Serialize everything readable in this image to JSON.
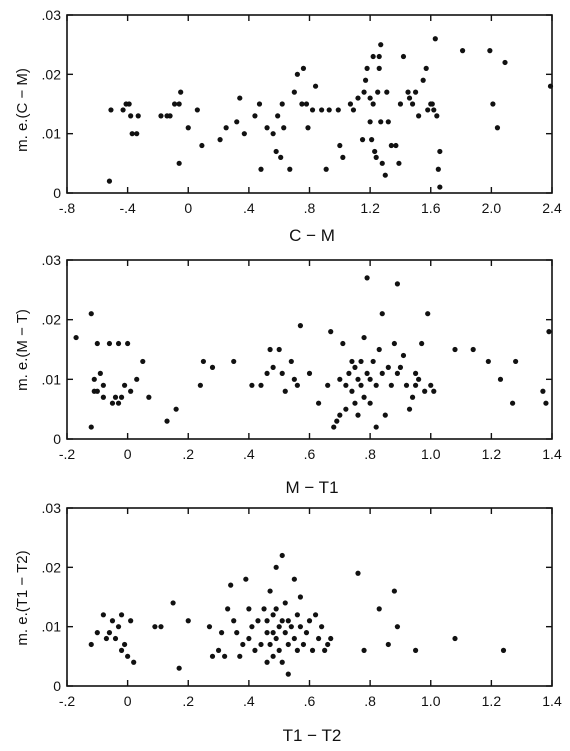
{
  "chart_data": [
    {
      "type": "scatter",
      "xlabel": "C − M",
      "ylabel": "m. e.(C − M)",
      "xlim": [
        -0.8,
        2.4
      ],
      "ylim": [
        0,
        0.03
      ],
      "xticks": [
        -0.8,
        -0.4,
        0,
        0.4,
        0.8,
        1.2,
        1.6,
        2.0,
        2.4
      ],
      "xtick_labels": [
        "-.8",
        "-.4",
        "0",
        ".4",
        ".8",
        "1.2",
        "1.6",
        "2.0",
        "2.4"
      ],
      "yticks": [
        0,
        0.01,
        0.02,
        0.03
      ],
      "ytick_labels": [
        "0",
        ".01",
        ".02",
        ".03"
      ],
      "points": [
        [
          -0.52,
          0.002
        ],
        [
          -0.51,
          0.014
        ],
        [
          -0.43,
          0.014
        ],
        [
          -0.41,
          0.015
        ],
        [
          -0.39,
          0.015
        ],
        [
          -0.38,
          0.013
        ],
        [
          -0.37,
          0.01
        ],
        [
          -0.34,
          0.01
        ],
        [
          -0.33,
          0.013
        ],
        [
          -0.18,
          0.013
        ],
        [
          -0.14,
          0.013
        ],
        [
          -0.12,
          0.013
        ],
        [
          -0.09,
          0.015
        ],
        [
          -0.06,
          0.015
        ],
        [
          -0.06,
          0.005
        ],
        [
          -0.05,
          0.017
        ],
        [
          0.0,
          0.011
        ],
        [
          0.06,
          0.014
        ],
        [
          0.09,
          0.008
        ],
        [
          0.21,
          0.009
        ],
        [
          0.25,
          0.011
        ],
        [
          0.32,
          0.012
        ],
        [
          0.34,
          0.016
        ],
        [
          0.37,
          0.01
        ],
        [
          0.44,
          0.013
        ],
        [
          0.47,
          0.015
        ],
        [
          0.48,
          0.004
        ],
        [
          0.52,
          0.011
        ],
        [
          0.56,
          0.01
        ],
        [
          0.58,
          0.007
        ],
        [
          0.59,
          0.013
        ],
        [
          0.61,
          0.006
        ],
        [
          0.62,
          0.015
        ],
        [
          0.63,
          0.011
        ],
        [
          0.67,
          0.004
        ],
        [
          0.7,
          0.017
        ],
        [
          0.72,
          0.02
        ],
        [
          0.75,
          0.015
        ],
        [
          0.76,
          0.021
        ],
        [
          0.78,
          0.015
        ],
        [
          0.79,
          0.011
        ],
        [
          0.82,
          0.014
        ],
        [
          0.84,
          0.018
        ],
        [
          0.88,
          0.014
        ],
        [
          0.91,
          0.004
        ],
        [
          0.93,
          0.014
        ],
        [
          0.99,
          0.014
        ],
        [
          1.0,
          0.008
        ],
        [
          1.02,
          0.006
        ],
        [
          1.07,
          0.015
        ],
        [
          1.09,
          0.014
        ],
        [
          1.12,
          0.016
        ],
        [
          1.15,
          0.009
        ],
        [
          1.16,
          0.017
        ],
        [
          1.17,
          0.019
        ],
        [
          1.18,
          0.021
        ],
        [
          1.2,
          0.016
        ],
        [
          1.2,
          0.012
        ],
        [
          1.21,
          0.009
        ],
        [
          1.22,
          0.015
        ],
        [
          1.22,
          0.023
        ],
        [
          1.23,
          0.007
        ],
        [
          1.24,
          0.006
        ],
        [
          1.25,
          0.017
        ],
        [
          1.26,
          0.021
        ],
        [
          1.26,
          0.023
        ],
        [
          1.27,
          0.025
        ],
        [
          1.27,
          0.012
        ],
        [
          1.28,
          0.005
        ],
        [
          1.3,
          0.003
        ],
        [
          1.31,
          0.017
        ],
        [
          1.32,
          0.012
        ],
        [
          1.34,
          0.008
        ],
        [
          1.37,
          0.008
        ],
        [
          1.39,
          0.005
        ],
        [
          1.4,
          0.015
        ],
        [
          1.42,
          0.023
        ],
        [
          1.45,
          0.017
        ],
        [
          1.46,
          0.016
        ],
        [
          1.48,
          0.015
        ],
        [
          1.5,
          0.017
        ],
        [
          1.52,
          0.013
        ],
        [
          1.55,
          0.019
        ],
        [
          1.57,
          0.021
        ],
        [
          1.58,
          0.014
        ],
        [
          1.6,
          0.015
        ],
        [
          1.61,
          0.015
        ],
        [
          1.62,
          0.014
        ],
        [
          1.63,
          0.026
        ],
        [
          1.64,
          0.013
        ],
        [
          1.65,
          0.004
        ],
        [
          1.66,
          0.007
        ],
        [
          1.66,
          0.001
        ],
        [
          1.81,
          0.024
        ],
        [
          1.99,
          0.024
        ],
        [
          2.01,
          0.015
        ],
        [
          2.04,
          0.011
        ],
        [
          2.09,
          0.022
        ],
        [
          2.39,
          0.018
        ]
      ]
    },
    {
      "type": "scatter",
      "xlabel": "M − T1",
      "ylabel": "m. e.(M − T)",
      "xlim": [
        -0.2,
        1.4
      ],
      "ylim": [
        0,
        0.03
      ],
      "xticks": [
        -0.2,
        0,
        0.2,
        0.4,
        0.6,
        0.8,
        1.0,
        1.2,
        1.4
      ],
      "xtick_labels": [
        "-.2",
        "0",
        ".2",
        ".4",
        ".6",
        ".8",
        "1.0",
        "1.2",
        "1.4"
      ],
      "yticks": [
        0,
        0.01,
        0.02,
        0.03
      ],
      "ytick_labels": [
        "0",
        ".01",
        ".02",
        ".03"
      ],
      "points": [
        [
          -0.17,
          0.017
        ],
        [
          -0.12,
          0.021
        ],
        [
          -0.12,
          0.002
        ],
        [
          -0.11,
          0.01
        ],
        [
          -0.11,
          0.008
        ],
        [
          -0.1,
          0.016
        ],
        [
          -0.1,
          0.008
        ],
        [
          -0.09,
          0.011
        ],
        [
          -0.08,
          0.007
        ],
        [
          -0.08,
          0.009
        ],
        [
          -0.06,
          0.016
        ],
        [
          -0.05,
          0.006
        ],
        [
          -0.04,
          0.007
        ],
        [
          -0.03,
          0.016
        ],
        [
          -0.03,
          0.006
        ],
        [
          -0.02,
          0.007
        ],
        [
          -0.01,
          0.009
        ],
        [
          0.0,
          0.016
        ],
        [
          0.01,
          0.008
        ],
        [
          0.03,
          0.01
        ],
        [
          0.05,
          0.013
        ],
        [
          0.07,
          0.007
        ],
        [
          0.13,
          0.003
        ],
        [
          0.16,
          0.005
        ],
        [
          0.24,
          0.009
        ],
        [
          0.25,
          0.013
        ],
        [
          0.28,
          0.012
        ],
        [
          0.35,
          0.013
        ],
        [
          0.41,
          0.009
        ],
        [
          0.44,
          0.009
        ],
        [
          0.46,
          0.011
        ],
        [
          0.47,
          0.015
        ],
        [
          0.48,
          0.012
        ],
        [
          0.5,
          0.015
        ],
        [
          0.51,
          0.011
        ],
        [
          0.52,
          0.008
        ],
        [
          0.54,
          0.013
        ],
        [
          0.55,
          0.01
        ],
        [
          0.56,
          0.009
        ],
        [
          0.57,
          0.019
        ],
        [
          0.6,
          0.011
        ],
        [
          0.63,
          0.006
        ],
        [
          0.66,
          0.009
        ],
        [
          0.67,
          0.018
        ],
        [
          0.68,
          0.002
        ],
        [
          0.69,
          0.003
        ],
        [
          0.7,
          0.004
        ],
        [
          0.7,
          0.01
        ],
        [
          0.71,
          0.016
        ],
        [
          0.72,
          0.005
        ],
        [
          0.72,
          0.009
        ],
        [
          0.73,
          0.011
        ],
        [
          0.74,
          0.013
        ],
        [
          0.74,
          0.008
        ],
        [
          0.75,
          0.006
        ],
        [
          0.75,
          0.012
        ],
        [
          0.76,
          0.004
        ],
        [
          0.76,
          0.01
        ],
        [
          0.77,
          0.009
        ],
        [
          0.77,
          0.013
        ],
        [
          0.78,
          0.007
        ],
        [
          0.78,
          0.017
        ],
        [
          0.79,
          0.011
        ],
        [
          0.79,
          0.027
        ],
        [
          0.8,
          0.006
        ],
        [
          0.8,
          0.01
        ],
        [
          0.81,
          0.013
        ],
        [
          0.82,
          0.002
        ],
        [
          0.82,
          0.009
        ],
        [
          0.83,
          0.015
        ],
        [
          0.84,
          0.021
        ],
        [
          0.84,
          0.011
        ],
        [
          0.85,
          0.004
        ],
        [
          0.86,
          0.012
        ],
        [
          0.87,
          0.009
        ],
        [
          0.88,
          0.016
        ],
        [
          0.89,
          0.026
        ],
        [
          0.89,
          0.011
        ],
        [
          0.9,
          0.012
        ],
        [
          0.91,
          0.014
        ],
        [
          0.92,
          0.009
        ],
        [
          0.93,
          0.005
        ],
        [
          0.94,
          0.007
        ],
        [
          0.95,
          0.009
        ],
        [
          0.95,
          0.011
        ],
        [
          0.96,
          0.01
        ],
        [
          0.97,
          0.016
        ],
        [
          0.98,
          0.008
        ],
        [
          0.99,
          0.021
        ],
        [
          1.0,
          0.009
        ],
        [
          1.01,
          0.008
        ],
        [
          1.08,
          0.015
        ],
        [
          1.14,
          0.015
        ],
        [
          1.19,
          0.013
        ],
        [
          1.23,
          0.01
        ],
        [
          1.27,
          0.006
        ],
        [
          1.28,
          0.013
        ],
        [
          1.37,
          0.008
        ],
        [
          1.38,
          0.006
        ],
        [
          1.39,
          0.018
        ]
      ]
    },
    {
      "type": "scatter",
      "xlabel": "T1 − T2",
      "ylabel": "m. e.(T1 − T2)",
      "xlim": [
        -0.2,
        1.4
      ],
      "ylim": [
        0,
        0.03
      ],
      "xticks": [
        -0.2,
        0,
        0.2,
        0.4,
        0.6,
        0.8,
        1.0,
        1.2,
        1.4
      ],
      "xtick_labels": [
        "-.2",
        "0",
        ".2",
        ".4",
        ".6",
        ".8",
        "1.0",
        "1.2",
        "1.4"
      ],
      "yticks": [
        0,
        0.01,
        0.02,
        0.03
      ],
      "ytick_labels": [
        "0",
        ".01",
        ".02",
        ".03"
      ],
      "points": [
        [
          -0.12,
          0.007
        ],
        [
          -0.1,
          0.009
        ],
        [
          -0.08,
          0.012
        ],
        [
          -0.07,
          0.008
        ],
        [
          -0.06,
          0.009
        ],
        [
          -0.05,
          0.011
        ],
        [
          -0.04,
          0.008
        ],
        [
          -0.03,
          0.01
        ],
        [
          -0.02,
          0.006
        ],
        [
          -0.02,
          0.012
        ],
        [
          -0.01,
          0.007
        ],
        [
          0.0,
          0.005
        ],
        [
          0.01,
          0.011
        ],
        [
          0.02,
          0.004
        ],
        [
          0.09,
          0.01
        ],
        [
          0.11,
          0.01
        ],
        [
          0.15,
          0.014
        ],
        [
          0.17,
          0.003
        ],
        [
          0.2,
          0.011
        ],
        [
          0.27,
          0.01
        ],
        [
          0.28,
          0.005
        ],
        [
          0.3,
          0.006
        ],
        [
          0.31,
          0.009
        ],
        [
          0.32,
          0.005
        ],
        [
          0.33,
          0.013
        ],
        [
          0.34,
          0.017
        ],
        [
          0.35,
          0.011
        ],
        [
          0.36,
          0.009
        ],
        [
          0.37,
          0.005
        ],
        [
          0.38,
          0.007
        ],
        [
          0.39,
          0.018
        ],
        [
          0.4,
          0.008
        ],
        [
          0.4,
          0.013
        ],
        [
          0.41,
          0.01
        ],
        [
          0.42,
          0.006
        ],
        [
          0.43,
          0.011
        ],
        [
          0.44,
          0.007
        ],
        [
          0.45,
          0.013
        ],
        [
          0.46,
          0.004
        ],
        [
          0.46,
          0.009
        ],
        [
          0.46,
          0.011
        ],
        [
          0.47,
          0.016
        ],
        [
          0.47,
          0.007
        ],
        [
          0.48,
          0.012
        ],
        [
          0.48,
          0.005
        ],
        [
          0.48,
          0.009
        ],
        [
          0.49,
          0.02
        ],
        [
          0.49,
          0.013
        ],
        [
          0.49,
          0.008
        ],
        [
          0.5,
          0.006
        ],
        [
          0.5,
          0.01
        ],
        [
          0.51,
          0.022
        ],
        [
          0.51,
          0.004
        ],
        [
          0.51,
          0.011
        ],
        [
          0.52,
          0.009
        ],
        [
          0.52,
          0.014
        ],
        [
          0.53,
          0.002
        ],
        [
          0.53,
          0.007
        ],
        [
          0.53,
          0.011
        ],
        [
          0.54,
          0.01
        ],
        [
          0.55,
          0.018
        ],
        [
          0.55,
          0.008
        ],
        [
          0.56,
          0.006
        ],
        [
          0.56,
          0.012
        ],
        [
          0.57,
          0.01
        ],
        [
          0.57,
          0.015
        ],
        [
          0.58,
          0.007
        ],
        [
          0.59,
          0.009
        ],
        [
          0.6,
          0.011
        ],
        [
          0.61,
          0.006
        ],
        [
          0.62,
          0.012
        ],
        [
          0.63,
          0.008
        ],
        [
          0.64,
          0.01
        ],
        [
          0.65,
          0.006
        ],
        [
          0.66,
          0.007
        ],
        [
          0.67,
          0.008
        ],
        [
          0.76,
          0.019
        ],
        [
          0.78,
          0.006
        ],
        [
          0.83,
          0.013
        ],
        [
          0.86,
          0.007
        ],
        [
          0.88,
          0.016
        ],
        [
          0.89,
          0.01
        ],
        [
          0.95,
          0.006
        ],
        [
          1.08,
          0.008
        ],
        [
          1.24,
          0.006
        ]
      ]
    }
  ]
}
